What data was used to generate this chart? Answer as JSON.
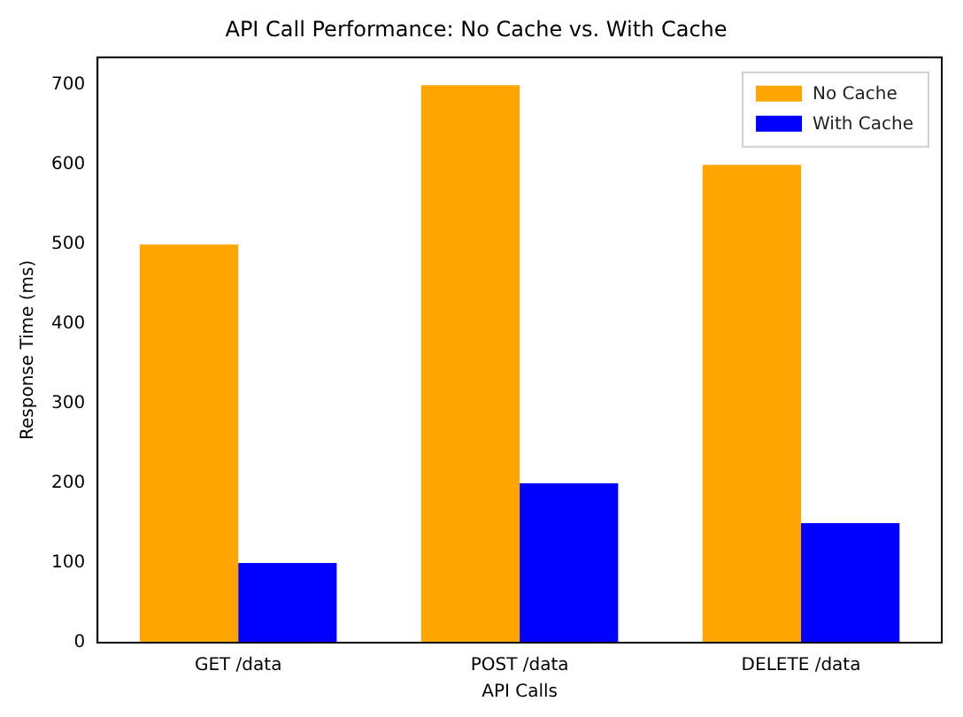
{
  "chart_data": {
    "type": "bar",
    "title": "API Call Performance: No Cache vs. With Cache",
    "xlabel": "API Calls",
    "ylabel": "Response Time (ms)",
    "categories": [
      "GET /data",
      "POST /data",
      "DELETE /data"
    ],
    "series": [
      {
        "name": "No Cache",
        "color": "#ffa500",
        "values": [
          500,
          700,
          600
        ]
      },
      {
        "name": "With Cache",
        "color": "#0000ff",
        "values": [
          100,
          200,
          150
        ]
      }
    ],
    "ylim": [
      0,
      735
    ],
    "yticks": [
      0,
      100,
      200,
      300,
      400,
      500,
      600,
      700
    ],
    "legend": "top right"
  }
}
